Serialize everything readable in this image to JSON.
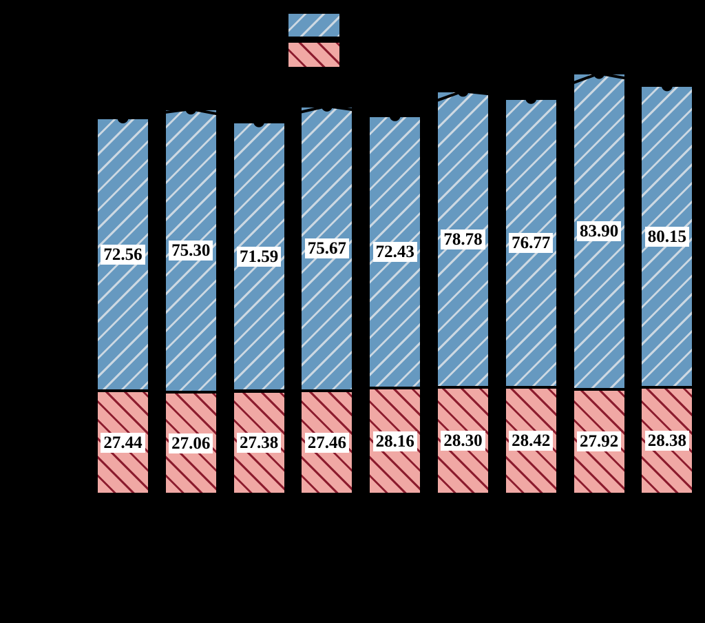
{
  "chart_data": {
    "type": "bar",
    "stacked": true,
    "orientation": "vertical",
    "background_color": "#000000",
    "bar_count": 9,
    "series": [
      {
        "name": "top-blue-hatched-segment",
        "hatch": "/",
        "fill_color": "#6699c0",
        "hatch_color": "#ccd8e2",
        "edge_color": "#000000",
        "values": [
          72.56,
          75.3,
          71.59,
          75.67,
          72.43,
          78.78,
          76.77,
          83.9,
          80.15
        ]
      },
      {
        "name": "bottom-red-hatched-segment",
        "hatch": "\\",
        "fill_color": "#f0a8a4",
        "hatch_color": "#8c1c2e",
        "edge_color": "#000000",
        "values": [
          27.44,
          27.06,
          27.38,
          27.46,
          28.16,
          28.3,
          28.42,
          27.92,
          28.38
        ]
      }
    ],
    "line_overlay": {
      "type": "line",
      "color": "#000000",
      "marker": "circle",
      "marker_color": "#000000",
      "values": [
        100.0,
        102.36,
        98.97,
        103.13,
        100.59,
        107.08,
        105.19,
        111.82,
        108.53
      ]
    },
    "value_labels": {
      "visible": true,
      "decimals": 2,
      "text_color": "#000000",
      "box_color": "#ffffff"
    },
    "legend": {
      "position": "top-center",
      "labels_visible": false,
      "swatches": [
        {
          "name": "blue-series-swatch",
          "fill_color": "#6699c0",
          "hatch": "/"
        },
        {
          "name": "red-series-swatch",
          "fill_color": "#f0a8a4",
          "hatch": "\\"
        }
      ]
    },
    "axes": {
      "tick_labels_visible": false,
      "axis_lines_visible": false
    }
  }
}
